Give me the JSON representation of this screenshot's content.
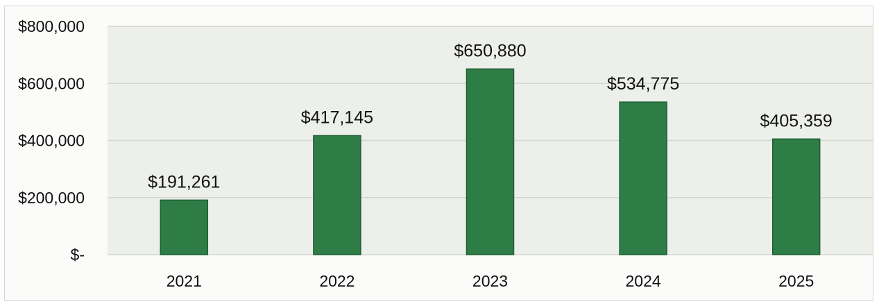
{
  "chart_data": {
    "type": "bar",
    "categories": [
      "2021",
      "2022",
      "2023",
      "2024",
      "2025"
    ],
    "values": [
      191261,
      417145,
      650880,
      534775,
      405359
    ],
    "data_labels": [
      "$191,261",
      "$417,145",
      "$650,880",
      "$534,775",
      "$405,359"
    ],
    "ylim": [
      0,
      800000
    ],
    "y_ticks": [
      0,
      200000,
      400000,
      600000,
      800000
    ],
    "y_tick_labels": [
      "$-",
      "$200,000",
      "$400,000",
      "$600,000",
      "$800,000"
    ],
    "grid": true,
    "legend": "none",
    "title": "",
    "xlabel": "",
    "ylabel": "",
    "colors": {
      "bar": "#2e7d46",
      "bar_edge": "#1f5f33",
      "plot_background": "#ecefea",
      "gridline": "#d3d6d1"
    }
  }
}
